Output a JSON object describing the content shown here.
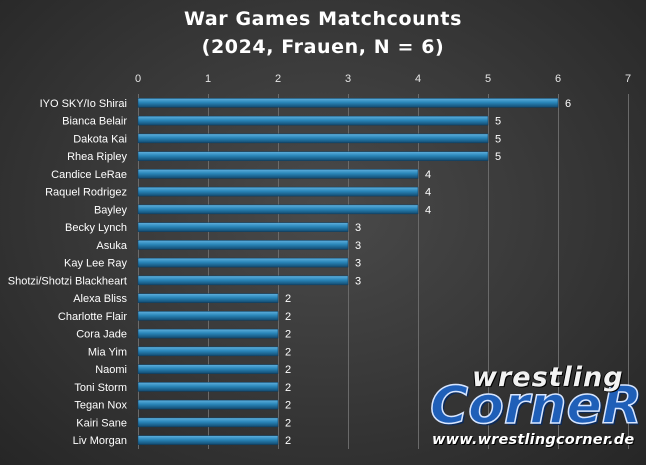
{
  "chart_data": {
    "type": "bar",
    "orientation": "horizontal",
    "title": "War Games Matchcounts",
    "subtitle": "(2024, Frauen,  N = 6)",
    "xlim": [
      0,
      7
    ],
    "xticks": [
      0,
      1,
      2,
      3,
      4,
      5,
      6,
      7
    ],
    "grid": true,
    "categories": [
      "IYO SKY/Io Shirai",
      "Bianca Belair",
      "Dakota Kai",
      "Rhea Ripley",
      "Candice LeRae",
      "Raquel Rodrigez",
      "Bayley",
      "Becky Lynch",
      "Asuka",
      "Kay Lee Ray",
      "Shotzi/Shotzi Blackheart",
      "Alexa Bliss",
      "Charlotte Flair",
      "Cora Jade",
      "Mia Yim",
      "Naomi",
      "Toni Storm",
      "Tegan Nox",
      "Kairi Sane",
      "Liv Morgan"
    ],
    "values": [
      6,
      5,
      5,
      5,
      4,
      4,
      4,
      3,
      3,
      3,
      3,
      2,
      2,
      2,
      2,
      2,
      2,
      2,
      2,
      2
    ],
    "bar_color": "#1f6f9e"
  },
  "logo": {
    "word1": "wrestling",
    "word2": "CorneR",
    "url": "www.wrestlingcorner.de"
  }
}
